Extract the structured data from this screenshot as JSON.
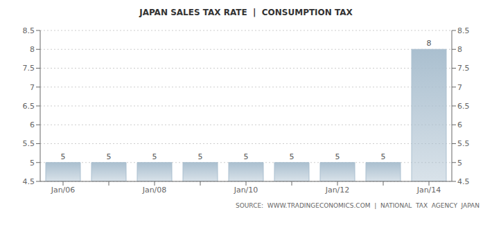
{
  "chart_data": {
    "type": "bar",
    "title": "JAPAN SALES TAX RATE  |  CONSUMPTION TAX",
    "annotations": [
      "SOURCE:  WWW.TRADINGECONOMICS.COM  |  NATIONAL  TAX  AGENCY  JAPAN"
    ],
    "categories": [
      "Jan/06",
      null,
      "Jan/08",
      null,
      "Jan/10",
      null,
      "Jan/12",
      null,
      "Jan/14"
    ],
    "values": [
      5,
      5,
      5,
      5,
      5,
      5,
      5,
      5,
      8
    ],
    "color": "#aabfcf",
    "ylim": [
      4.5,
      8.5
    ],
    "yticks": [
      4.5,
      5,
      5.5,
      6,
      6.5,
      7,
      7.5,
      8,
      8.5
    ],
    "y2lim": [
      4.5,
      8.5
    ],
    "y2ticks": [
      4.5,
      5,
      5.5,
      6,
      6.5,
      7,
      7.5,
      8,
      8.5
    ],
    "grid": true,
    "data_labels": true
  }
}
